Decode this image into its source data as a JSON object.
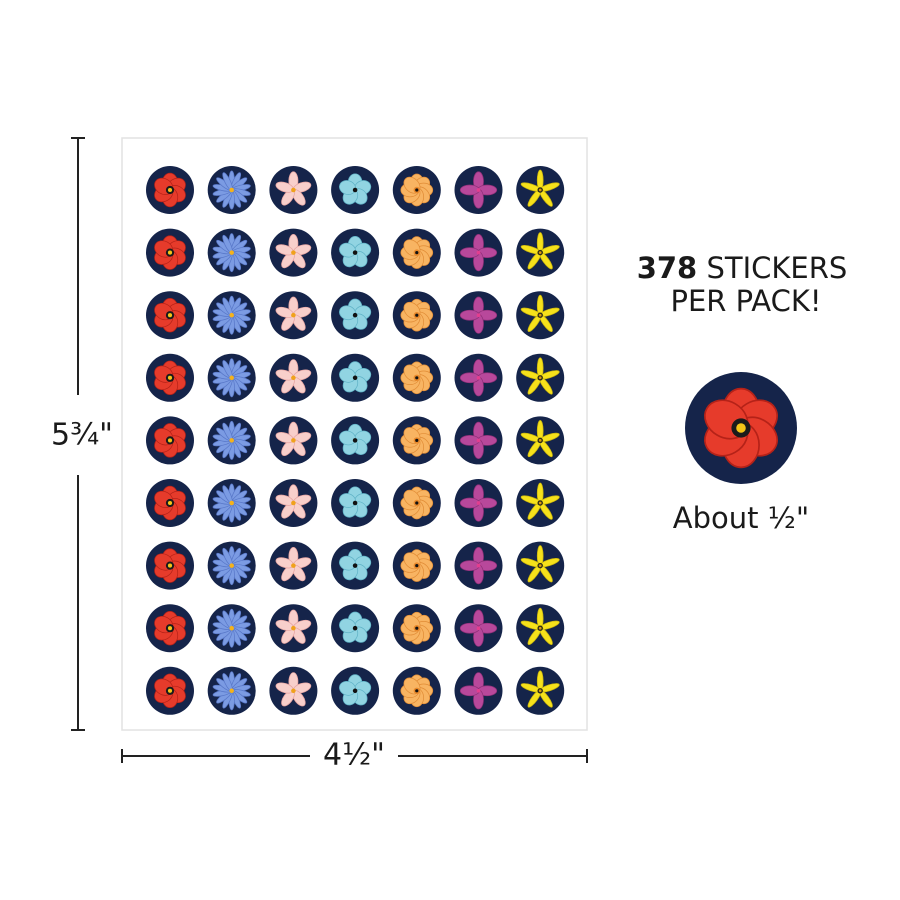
{
  "dimensions": {
    "height": "5¾\"",
    "width": "4½\""
  },
  "callout": {
    "count": "378",
    "line1": "STICKERS",
    "line2": "PER PACK!"
  },
  "sample": {
    "label": "About ½\""
  }
}
